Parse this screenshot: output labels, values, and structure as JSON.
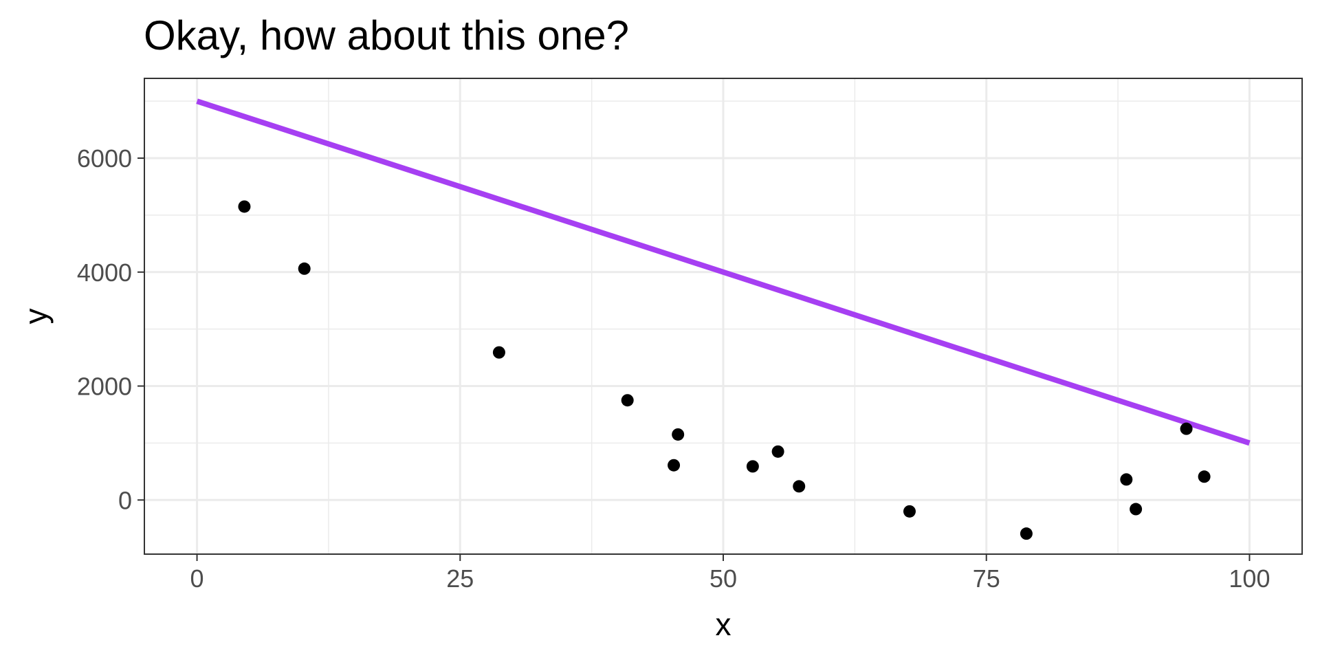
{
  "chart_data": {
    "type": "scatter",
    "title": "Okay, how about this one?",
    "xlabel": "x",
    "ylabel": "y",
    "xlim": [
      -5,
      105
    ],
    "ylim": [
      -950,
      7400
    ],
    "x_ticks": [
      0,
      25,
      50,
      75,
      100
    ],
    "y_ticks": [
      0,
      2000,
      4000,
      6000
    ],
    "x_tick_labels": [
      "0",
      "25",
      "50",
      "75",
      "100"
    ],
    "y_tick_labels": [
      "0",
      "2000",
      "4000",
      "6000"
    ],
    "x_minor_ticks": [
      12.5,
      37.5,
      62.5,
      87.5
    ],
    "y_minor_ticks": [
      -1000,
      1000,
      3000,
      5000,
      7000
    ],
    "grid": true,
    "theme": "black-and-white",
    "points": [
      {
        "x": 4.5,
        "y": 5150
      },
      {
        "x": 10.2,
        "y": 4060
      },
      {
        "x": 28.7,
        "y": 2590
      },
      {
        "x": 40.9,
        "y": 1750
      },
      {
        "x": 45.3,
        "y": 610
      },
      {
        "x": 45.7,
        "y": 1150
      },
      {
        "x": 52.8,
        "y": 590
      },
      {
        "x": 55.2,
        "y": 850
      },
      {
        "x": 57.2,
        "y": 240
      },
      {
        "x": 67.7,
        "y": -200
      },
      {
        "x": 78.8,
        "y": -590
      },
      {
        "x": 88.3,
        "y": 360
      },
      {
        "x": 89.2,
        "y": -160
      },
      {
        "x": 94.0,
        "y": 1250
      },
      {
        "x": 95.7,
        "y": 410
      }
    ],
    "line": {
      "x": [
        0,
        100
      ],
      "y": [
        7000,
        1000
      ],
      "color": "#a63ff2"
    },
    "point_color": "#000000"
  }
}
